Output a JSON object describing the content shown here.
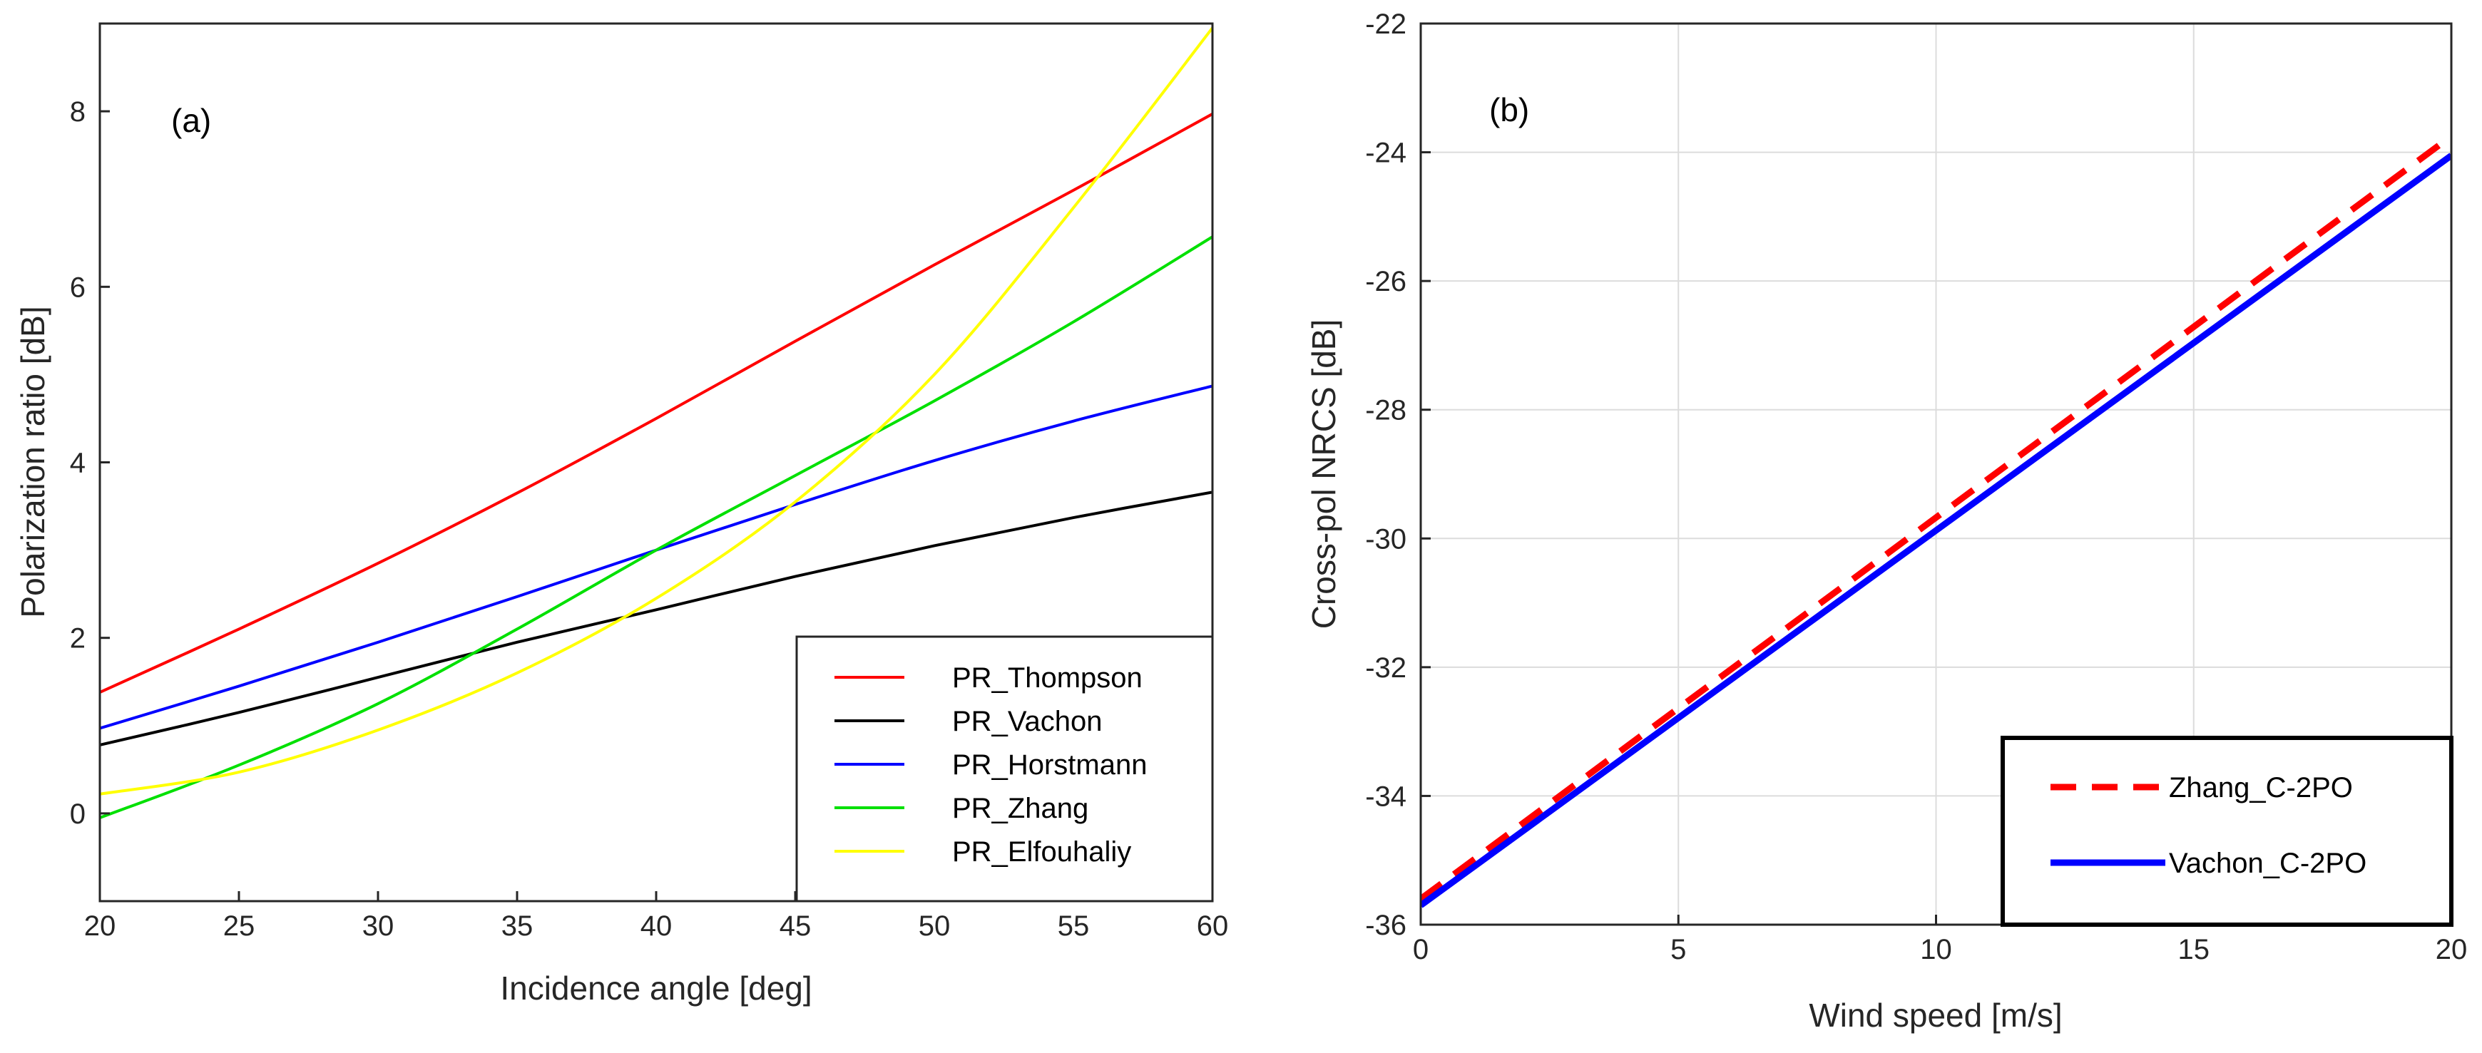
{
  "chart_data": [
    {
      "type": "line",
      "panel_label": "(a)",
      "xlabel": "Incidence angle [deg]",
      "ylabel": "Polarization ratio [dB]",
      "xlim": [
        20,
        60
      ],
      "ylim": [
        -1,
        9
      ],
      "xticks": [
        20,
        25,
        30,
        35,
        40,
        45,
        50,
        55,
        60
      ],
      "yticks": [
        0,
        2,
        4,
        6,
        8
      ],
      "grid": false,
      "legend_position": "bottom-right",
      "series": [
        {
          "name": "PR_Thompson",
          "color": "#ff0000",
          "x": [
            20,
            25,
            30,
            35,
            40,
            45,
            50,
            55,
            60
          ],
          "y": [
            1.38,
            2.1,
            2.85,
            3.65,
            4.5,
            5.38,
            6.25,
            7.1,
            7.97
          ]
        },
        {
          "name": "PR_Vachon",
          "color": "#000000",
          "x": [
            20,
            25,
            30,
            35,
            40,
            45,
            50,
            55,
            60
          ],
          "y": [
            0.78,
            1.15,
            1.55,
            1.95,
            2.32,
            2.7,
            3.05,
            3.37,
            3.66
          ]
        },
        {
          "name": "PR_Horstmann",
          "color": "#0000ff",
          "x": [
            20,
            25,
            30,
            35,
            40,
            45,
            50,
            55,
            60
          ],
          "y": [
            0.97,
            1.45,
            1.95,
            2.47,
            3.0,
            3.52,
            4.02,
            4.47,
            4.87
          ]
        },
        {
          "name": "PR_Zhang",
          "color": "#00e000",
          "x": [
            20,
            25,
            30,
            35,
            40,
            45,
            50,
            55,
            60
          ],
          "y": [
            -0.05,
            0.55,
            1.25,
            2.1,
            3.0,
            3.85,
            4.7,
            5.6,
            6.57
          ]
        },
        {
          "name": "PR_Elfouhaliy",
          "color": "#ffff00",
          "x": [
            20,
            25,
            30,
            35,
            40,
            45,
            50,
            55,
            60
          ],
          "y": [
            0.22,
            0.47,
            0.95,
            1.6,
            2.45,
            3.55,
            5.0,
            6.9,
            8.95
          ]
        }
      ]
    },
    {
      "type": "line",
      "panel_label": "(b)",
      "xlabel": "Wind speed [m/s]",
      "ylabel": "Cross-pol NRCS [dB]",
      "xlim": [
        0,
        20
      ],
      "ylim": [
        -36,
        -22
      ],
      "xticks": [
        0,
        5,
        10,
        15,
        20
      ],
      "yticks": [
        -36,
        -34,
        -32,
        -30,
        -28,
        -26,
        -24,
        -22
      ],
      "grid": true,
      "legend_position": "bottom-right",
      "series": [
        {
          "name": "Zhang_C-2PO",
          "color": "#ff0000",
          "style": "dashed",
          "x": [
            0,
            20
          ],
          "y": [
            -35.6,
            -23.75
          ]
        },
        {
          "name": "Vachon_C-2PO",
          "color": "#0000ff",
          "style": "solid",
          "x": [
            0,
            20
          ],
          "y": [
            -35.7,
            -24.05
          ]
        }
      ]
    }
  ]
}
